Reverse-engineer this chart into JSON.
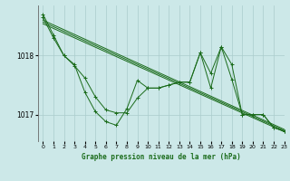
{
  "xlabel": "Graphe pression niveau de la mer (hPa)",
  "background_color": "#cce8e8",
  "grid_color": "#aacccc",
  "line_color": "#1a6b1a",
  "ylim": [
    1016.55,
    1018.85
  ],
  "xlim": [
    -0.5,
    23
  ],
  "yticks": [
    1017,
    1018
  ],
  "xticks": [
    0,
    1,
    2,
    3,
    4,
    5,
    6,
    7,
    8,
    9,
    10,
    11,
    12,
    13,
    14,
    15,
    16,
    17,
    18,
    19,
    20,
    21,
    22,
    23
  ],
  "trend_lines": [
    [
      [
        0,
        23
      ],
      [
        1018.6,
        1016.75
      ]
    ],
    [
      [
        0,
        23
      ],
      [
        1018.57,
        1016.73
      ]
    ],
    [
      [
        0,
        23
      ],
      [
        1018.54,
        1016.71
      ]
    ]
  ],
  "series_main": [
    1018.7,
    1018.35,
    1018.0,
    1017.85,
    1017.38,
    1017.05,
    1016.88,
    1016.82,
    1017.1,
    1017.58,
    1017.45,
    1017.45,
    1017.5,
    1017.55,
    1017.55,
    1018.05,
    1017.45,
    1018.15,
    1017.6,
    1017.0,
    1017.0,
    1017.0,
    1016.78,
    1016.72
  ],
  "series_secondary": [
    1018.65,
    1018.3,
    1018.0,
    1017.83,
    1017.62,
    1017.3,
    1017.08,
    1017.03,
    1017.03,
    1017.28,
    1017.45,
    1017.45,
    1017.5,
    1017.55,
    1017.55,
    1018.05,
    1017.7,
    1018.15,
    1017.85,
    1017.0,
    1017.0,
    1017.0,
    1016.78,
    1016.72
  ]
}
